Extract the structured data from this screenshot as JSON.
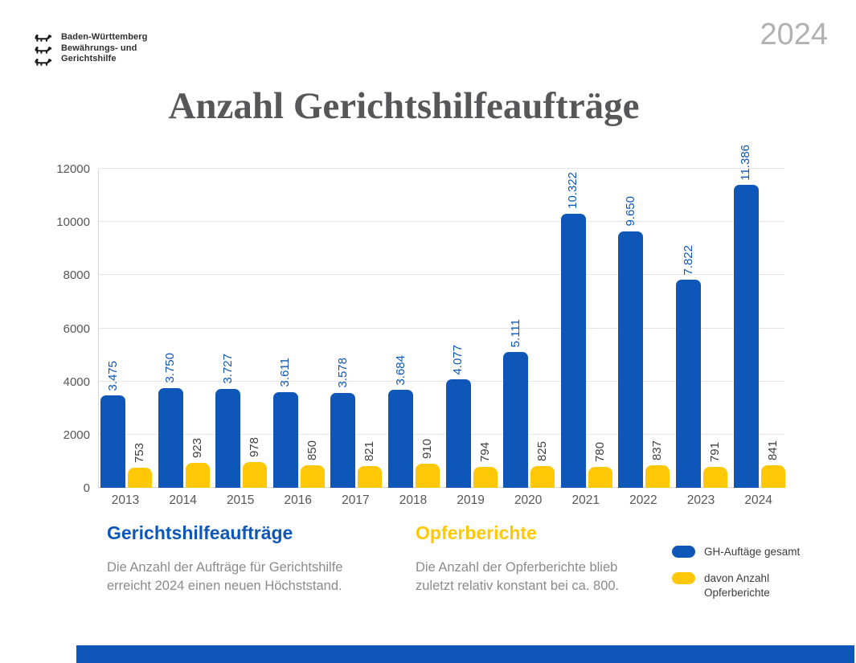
{
  "header": {
    "logo_lines": [
      "Baden-Württemberg",
      "Bewährungs- und",
      "Gerichtshilfe"
    ],
    "year_badge": "2024"
  },
  "title": "Anzahl Gerichtshilfeaufträge",
  "chart_data": {
    "type": "bar",
    "categories": [
      "2013",
      "2014",
      "2015",
      "2016",
      "2017",
      "2018",
      "2019",
      "2020",
      "2021",
      "2022",
      "2023",
      "2024"
    ],
    "series": [
      {
        "name": "GH-Auftäge gesamt",
        "color": "#0E57B8",
        "values": [
          3475,
          3750,
          3727,
          3611,
          3578,
          3684,
          4077,
          5111,
          10322,
          9650,
          7822,
          11386
        ],
        "labels": [
          "3.475",
          "3.750",
          "3.727",
          "3.611",
          "3.578",
          "3.684",
          "4.077",
          "5.111",
          "10.322",
          "9.650",
          "7.822",
          "11.386"
        ]
      },
      {
        "name": "davon Anzahl Opferberichte",
        "color": "#FFC807",
        "values": [
          753,
          923,
          978,
          850,
          821,
          910,
          794,
          825,
          780,
          837,
          791,
          841
        ],
        "labels": [
          "753",
          "923",
          "978",
          "850",
          "821",
          "910",
          "794",
          "825",
          "780",
          "837",
          "791",
          "841"
        ]
      }
    ],
    "ylim": [
      0,
      12000
    ],
    "yticks": [
      0,
      2000,
      4000,
      6000,
      8000,
      10000,
      12000
    ],
    "grid": true,
    "xlabel": "",
    "ylabel": "",
    "legend_position": "bottom-right"
  },
  "annotations": {
    "left": {
      "heading": "Gerichtshilfeaufträge",
      "body": "Die Anzahl der Aufträge für Gerichtshilfe\nerreicht 2024 einen neuen Höchststand."
    },
    "right": {
      "heading": "Opferberichte",
      "body": "Die Anzahl der Opferberichte blieb\nzuletzt relativ konstant bei ca. 800."
    }
  },
  "legend": {
    "items": [
      {
        "label": "GH-Auftäge gesamt",
        "color": "#0E57B8"
      },
      {
        "label": "davon Anzahl\nOpferberichte",
        "color": "#FFC807"
      }
    ]
  },
  "colors": {
    "accent_blue": "#0E57B8",
    "accent_yellow": "#FFC807",
    "title_gray": "#57575a",
    "year_gray": "#b1b1b4",
    "body_gray": "#8b8b8b",
    "footer_bar": "#0E57B8"
  }
}
